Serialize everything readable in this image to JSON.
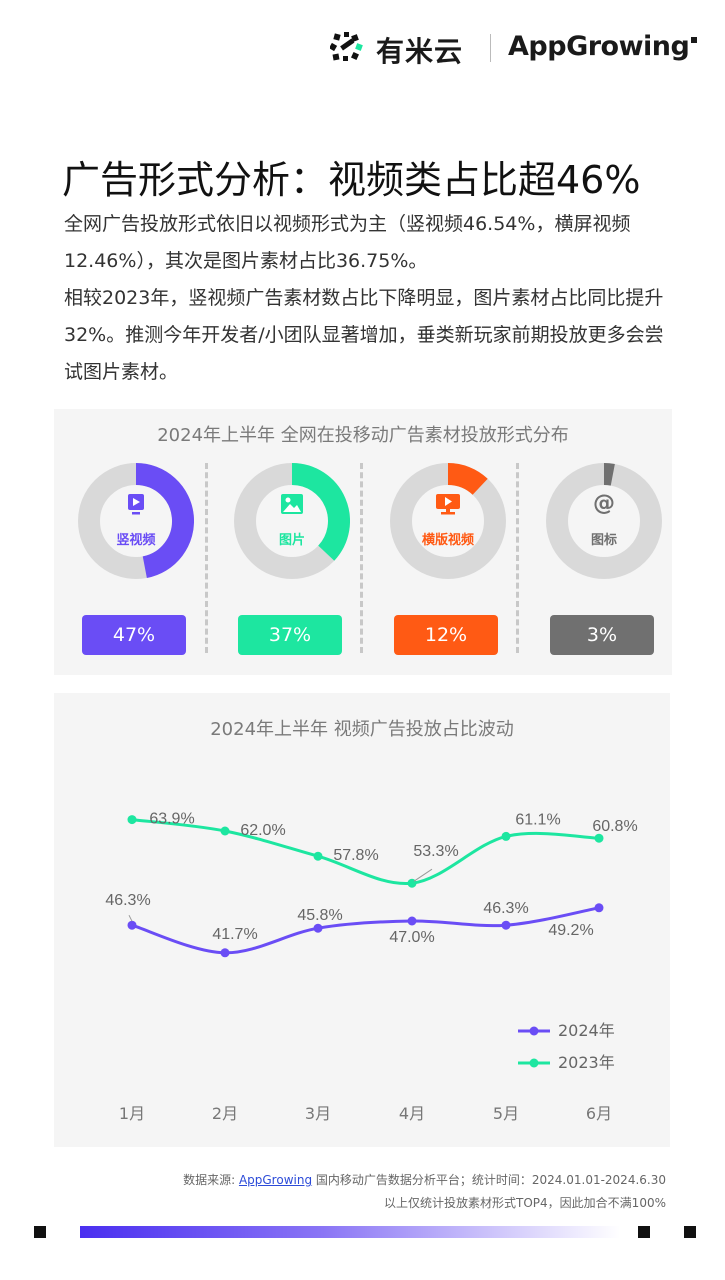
{
  "header": {
    "brand_cn": "有米云",
    "brand_en_pre": "App",
    "brand_en_g": "G",
    "brand_en_post": "rowing"
  },
  "title": "广告形式分析：视频类占比超46%",
  "intro": {
    "p1": "全网广告投放形式依旧以视频形式为主（竖视频46.54%，横屏视频12.46%），其次是图片素材占比36.75%。",
    "p2": "相较2023年，竖视频广告素材数占比下降明显，图片素材占比同比提升32%。推测今年开发者/小团队显著增加，垂类新玩家前期投放更多会尝试图片素材。"
  },
  "colors": {
    "vertical_video": "#6a4df5",
    "image": "#1de6a0",
    "horizontal_video": "#ff5a14",
    "icon": "#707070",
    "ring_bg": "#d9d9d9",
    "line_2024": "#6a4df5",
    "line_2023": "#1de6a0"
  },
  "chart_data": [
    {
      "type": "pie",
      "title": "2024年上半年 全网在投移动广告素材投放形式分布",
      "slices": [
        {
          "label": "竖视频",
          "value": 47,
          "display": "47%",
          "icon": "vertical-phone-icon"
        },
        {
          "label": "图片",
          "value": 37,
          "display": "37%",
          "icon": "image-icon"
        },
        {
          "label": "横版视频",
          "value": 12,
          "display": "12%",
          "icon": "monitor-icon"
        },
        {
          "label": "图标",
          "value": 3,
          "display": "3%",
          "icon": "at-sign-icon"
        }
      ]
    },
    {
      "type": "line",
      "title": "2024年上半年 视频广告投放占比波动",
      "categories": [
        "1月",
        "2月",
        "3月",
        "4月",
        "5月",
        "6月"
      ],
      "series": [
        {
          "name": "2024年",
          "values": [
            46.3,
            41.7,
            45.8,
            47.0,
            46.3,
            49.2
          ],
          "labels": [
            "46.3%",
            "41.7%",
            "45.8%",
            "47.0%",
            "46.3%",
            "49.2%"
          ]
        },
        {
          "name": "2023年",
          "values": [
            63.9,
            62.0,
            57.8,
            53.3,
            61.1,
            60.8
          ],
          "labels": [
            "63.9%",
            "62.0%",
            "57.8%",
            "53.3%",
            "61.1%",
            "60.8%"
          ]
        }
      ],
      "ylim": [
        20,
        75
      ],
      "grid": false,
      "legend": "bottom-right"
    }
  ],
  "footer": {
    "source_prefix": "数据来源: ",
    "source_link": "AppGrowing",
    "source_suffix": " 国内移动广告数据分析平台；统计时间：2024.01.01-2024.6.30",
    "scope_note": "以上仅统计投放素材形式TOP4，因此加合不满100%"
  }
}
